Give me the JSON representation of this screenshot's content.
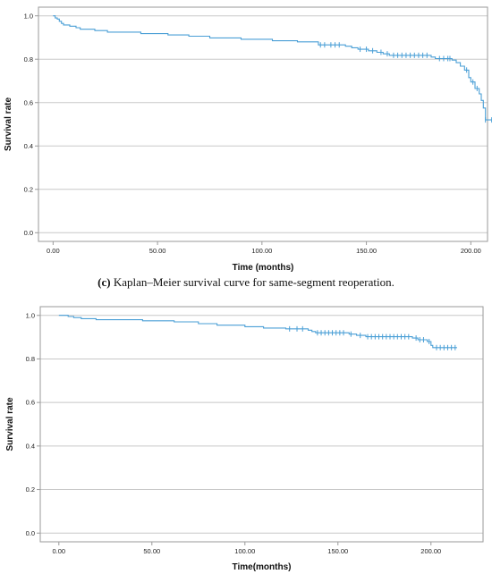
{
  "caption": {
    "label": "(c)",
    "text": " Kaplan–Meier survival curve for same-segment reoperation."
  },
  "colors": {
    "curve": "#4a9fd6",
    "grid": "#c8c8c8",
    "frame": "#9a9a9a"
  },
  "chart_data": [
    {
      "type": "line",
      "xlabel": "Time (months)",
      "ylabel": "Survival rate",
      "xlim": [
        -7,
        208
      ],
      "ylim": [
        -0.04,
        1.04
      ],
      "xticks": [
        0,
        50,
        100,
        150,
        200
      ],
      "xtick_labels": [
        "0.00",
        "50.00",
        "100.00",
        "150.00",
        "200.00"
      ],
      "yticks": [
        0,
        0.2,
        0.4,
        0.6,
        0.8,
        1.0
      ],
      "ytick_labels": [
        "0.0",
        "0.2",
        "0.4",
        "0.6",
        "0.8",
        "1.0"
      ],
      "grid": true,
      "step": [
        [
          0,
          1.0
        ],
        [
          1,
          0.99
        ],
        [
          2,
          0.985
        ],
        [
          3,
          0.975
        ],
        [
          4,
          0.965
        ],
        [
          5,
          0.958
        ],
        [
          8,
          0.952
        ],
        [
          11,
          0.945
        ],
        [
          13,
          0.938
        ],
        [
          20,
          0.932
        ],
        [
          26,
          0.925
        ],
        [
          42,
          0.918
        ],
        [
          55,
          0.912
        ],
        [
          65,
          0.906
        ],
        [
          75,
          0.898
        ],
        [
          90,
          0.892
        ],
        [
          105,
          0.885
        ],
        [
          117,
          0.88
        ],
        [
          127,
          0.866
        ],
        [
          140,
          0.86
        ],
        [
          143,
          0.853
        ],
        [
          146,
          0.846
        ],
        [
          151,
          0.839
        ],
        [
          155,
          0.832
        ],
        [
          158,
          0.825
        ],
        [
          161,
          0.818
        ],
        [
          181,
          0.81
        ],
        [
          183,
          0.803
        ],
        [
          191,
          0.796
        ],
        [
          193,
          0.784
        ],
        [
          195,
          0.768
        ],
        [
          197,
          0.75
        ],
        [
          199,
          0.715
        ],
        [
          200,
          0.695
        ],
        [
          202,
          0.665
        ],
        [
          204,
          0.64
        ],
        [
          205,
          0.61
        ],
        [
          206,
          0.575
        ],
        [
          207,
          0.52
        ],
        [
          212,
          0.52
        ]
      ],
      "censored": [
        [
          128,
          0.866
        ],
        [
          130,
          0.866
        ],
        [
          133,
          0.866
        ],
        [
          135,
          0.866
        ],
        [
          137,
          0.866
        ],
        [
          147,
          0.846
        ],
        [
          150,
          0.846
        ],
        [
          153,
          0.839
        ],
        [
          157,
          0.832
        ],
        [
          160,
          0.825
        ],
        [
          163,
          0.818
        ],
        [
          165,
          0.818
        ],
        [
          167,
          0.818
        ],
        [
          169,
          0.818
        ],
        [
          171,
          0.818
        ],
        [
          173,
          0.818
        ],
        [
          175,
          0.818
        ],
        [
          177,
          0.818
        ],
        [
          179,
          0.818
        ],
        [
          185,
          0.803
        ],
        [
          187,
          0.803
        ],
        [
          189,
          0.803
        ],
        [
          190,
          0.803
        ],
        [
          198,
          0.75
        ],
        [
          201,
          0.695
        ],
        [
          203,
          0.665
        ],
        [
          207,
          0.52
        ],
        [
          210,
          0.52
        ]
      ]
    },
    {
      "type": "line",
      "xlabel": "Time(months)",
      "ylabel": "Survival rate",
      "xlim": [
        -10,
        228
      ],
      "ylim": [
        -0.04,
        1.04
      ],
      "xticks": [
        0,
        50,
        100,
        150,
        200
      ],
      "xtick_labels": [
        "0.00",
        "50.00",
        "100.00",
        "150.00",
        "200.00"
      ],
      "yticks": [
        0,
        0.2,
        0.4,
        0.6,
        0.8,
        1.0
      ],
      "ytick_labels": [
        "0.0",
        "0.2",
        "0.4",
        "0.6",
        "0.8",
        "1.0"
      ],
      "grid": true,
      "step": [
        [
          0,
          1.0
        ],
        [
          5,
          0.995
        ],
        [
          8,
          0.99
        ],
        [
          12,
          0.985
        ],
        [
          20,
          0.98
        ],
        [
          45,
          0.975
        ],
        [
          62,
          0.97
        ],
        [
          75,
          0.962
        ],
        [
          85,
          0.955
        ],
        [
          100,
          0.948
        ],
        [
          110,
          0.942
        ],
        [
          122,
          0.938
        ],
        [
          134,
          0.932
        ],
        [
          136,
          0.926
        ],
        [
          138,
          0.92
        ],
        [
          156,
          0.914
        ],
        [
          160,
          0.908
        ],
        [
          165,
          0.902
        ],
        [
          190,
          0.896
        ],
        [
          193,
          0.888
        ],
        [
          198,
          0.88
        ],
        [
          200,
          0.862
        ],
        [
          201,
          0.852
        ],
        [
          214,
          0.852
        ]
      ],
      "censored": [
        [
          124,
          0.938
        ],
        [
          128,
          0.938
        ],
        [
          131,
          0.938
        ],
        [
          139,
          0.92
        ],
        [
          141,
          0.92
        ],
        [
          143,
          0.92
        ],
        [
          145,
          0.92
        ],
        [
          147,
          0.92
        ],
        [
          149,
          0.92
        ],
        [
          151,
          0.92
        ],
        [
          153,
          0.92
        ],
        [
          157,
          0.914
        ],
        [
          162,
          0.908
        ],
        [
          166,
          0.902
        ],
        [
          168,
          0.902
        ],
        [
          170,
          0.902
        ],
        [
          172,
          0.902
        ],
        [
          174,
          0.902
        ],
        [
          176,
          0.902
        ],
        [
          178,
          0.902
        ],
        [
          180,
          0.902
        ],
        [
          182,
          0.902
        ],
        [
          184,
          0.902
        ],
        [
          186,
          0.902
        ],
        [
          188,
          0.902
        ],
        [
          192,
          0.896
        ],
        [
          194,
          0.888
        ],
        [
          196,
          0.888
        ],
        [
          199,
          0.88
        ],
        [
          203,
          0.852
        ],
        [
          205,
          0.852
        ],
        [
          207,
          0.852
        ],
        [
          209,
          0.852
        ],
        [
          211,
          0.852
        ],
        [
          213,
          0.852
        ]
      ]
    }
  ]
}
